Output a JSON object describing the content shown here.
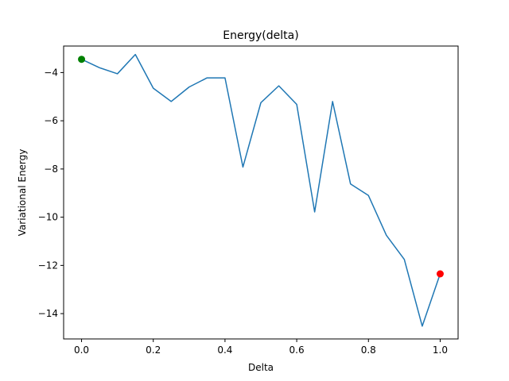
{
  "chart_data": {
    "type": "line",
    "title": "Energy(delta)",
    "xlabel": "Delta",
    "ylabel": "Variational Energy",
    "xlim": [
      -0.05,
      1.05
    ],
    "ylim": [
      -15.05,
      -2.9
    ],
    "xticks": [
      0.0,
      0.2,
      0.4,
      0.6,
      0.8,
      1.0
    ],
    "xtick_labels": [
      "0.0",
      "0.2",
      "0.4",
      "0.6",
      "0.8",
      "1.0"
    ],
    "yticks": [
      -4,
      -6,
      -8,
      -10,
      -12,
      -14
    ],
    "ytick_labels": [
      "−4",
      "−6",
      "−8",
      "−10",
      "−12",
      "−14"
    ],
    "grid": false,
    "series": [
      {
        "color": "#1f77b4",
        "x": [
          0.0,
          0.05,
          0.1,
          0.15,
          0.2,
          0.25,
          0.3,
          0.35,
          0.4,
          0.45,
          0.5,
          0.55,
          0.6,
          0.65,
          0.7,
          0.75,
          0.8,
          0.85,
          0.9,
          0.95,
          1.0
        ],
        "y": [
          -3.45,
          -3.8,
          -4.05,
          -3.25,
          -4.65,
          -5.2,
          -4.6,
          -4.22,
          -4.22,
          -7.92,
          -5.25,
          -4.55,
          -5.32,
          -9.78,
          -5.2,
          -8.62,
          -9.1,
          -10.75,
          -11.75,
          -14.52,
          -12.35
        ]
      }
    ],
    "markers": [
      {
        "x": 0.0,
        "y": -3.45,
        "color": "#008000"
      },
      {
        "x": 1.0,
        "y": -12.35,
        "color": "#ff0000"
      }
    ]
  }
}
